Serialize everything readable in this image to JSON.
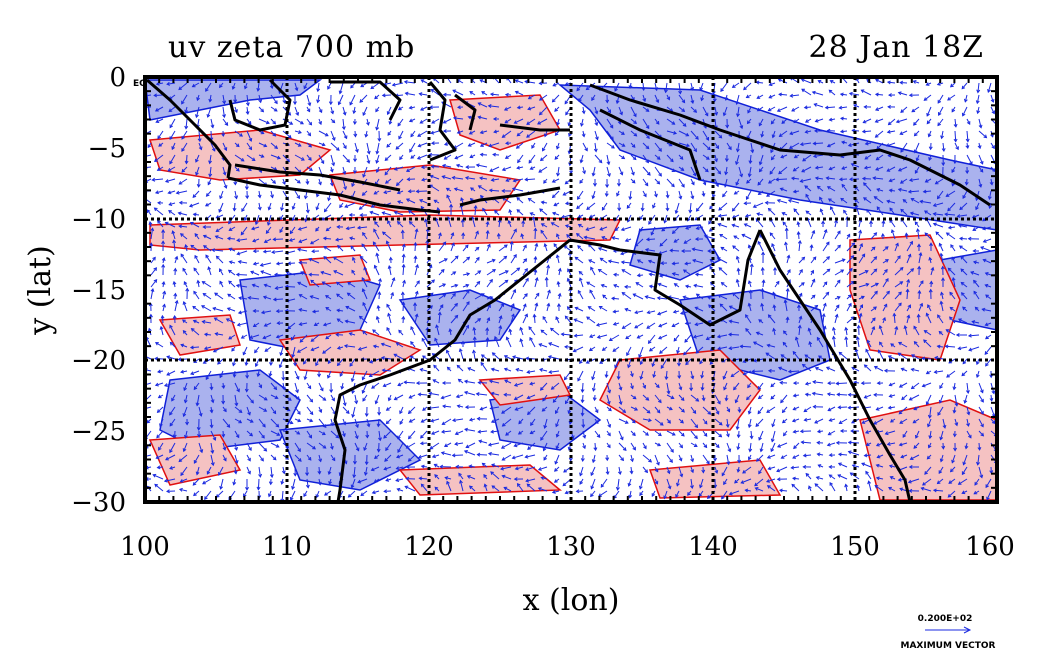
{
  "header": {
    "left_title": "uv zeta 700 mb",
    "right_title": "28 Jan 18Z"
  },
  "map": {
    "xlabel": "x (lon)",
    "ylabel": "y (lat)",
    "x_ticks": [
      "100",
      "110",
      "120",
      "130",
      "140",
      "150",
      "160"
    ],
    "y_ticks": [
      "0",
      "−5",
      "−10",
      "−15",
      "−20",
      "−25",
      "−30"
    ],
    "equator_label": "EQ",
    "lon_range": [
      100,
      160
    ],
    "lat_range": [
      -30,
      0
    ],
    "grid_lons": [
      110,
      120,
      130,
      140,
      150
    ],
    "grid_lats": [
      -10,
      -20
    ],
    "colors": {
      "positive_fill": "#f5c2c2",
      "positive_contour": "#e01010",
      "negative_fill": "#aab2ee",
      "negative_contour": "#1020d8",
      "vectors": "#1a2ae0",
      "coastline": "#000000"
    }
  },
  "vector_legend": {
    "value": "0.200E+02",
    "caption": "MAXIMUM VECTOR"
  }
}
